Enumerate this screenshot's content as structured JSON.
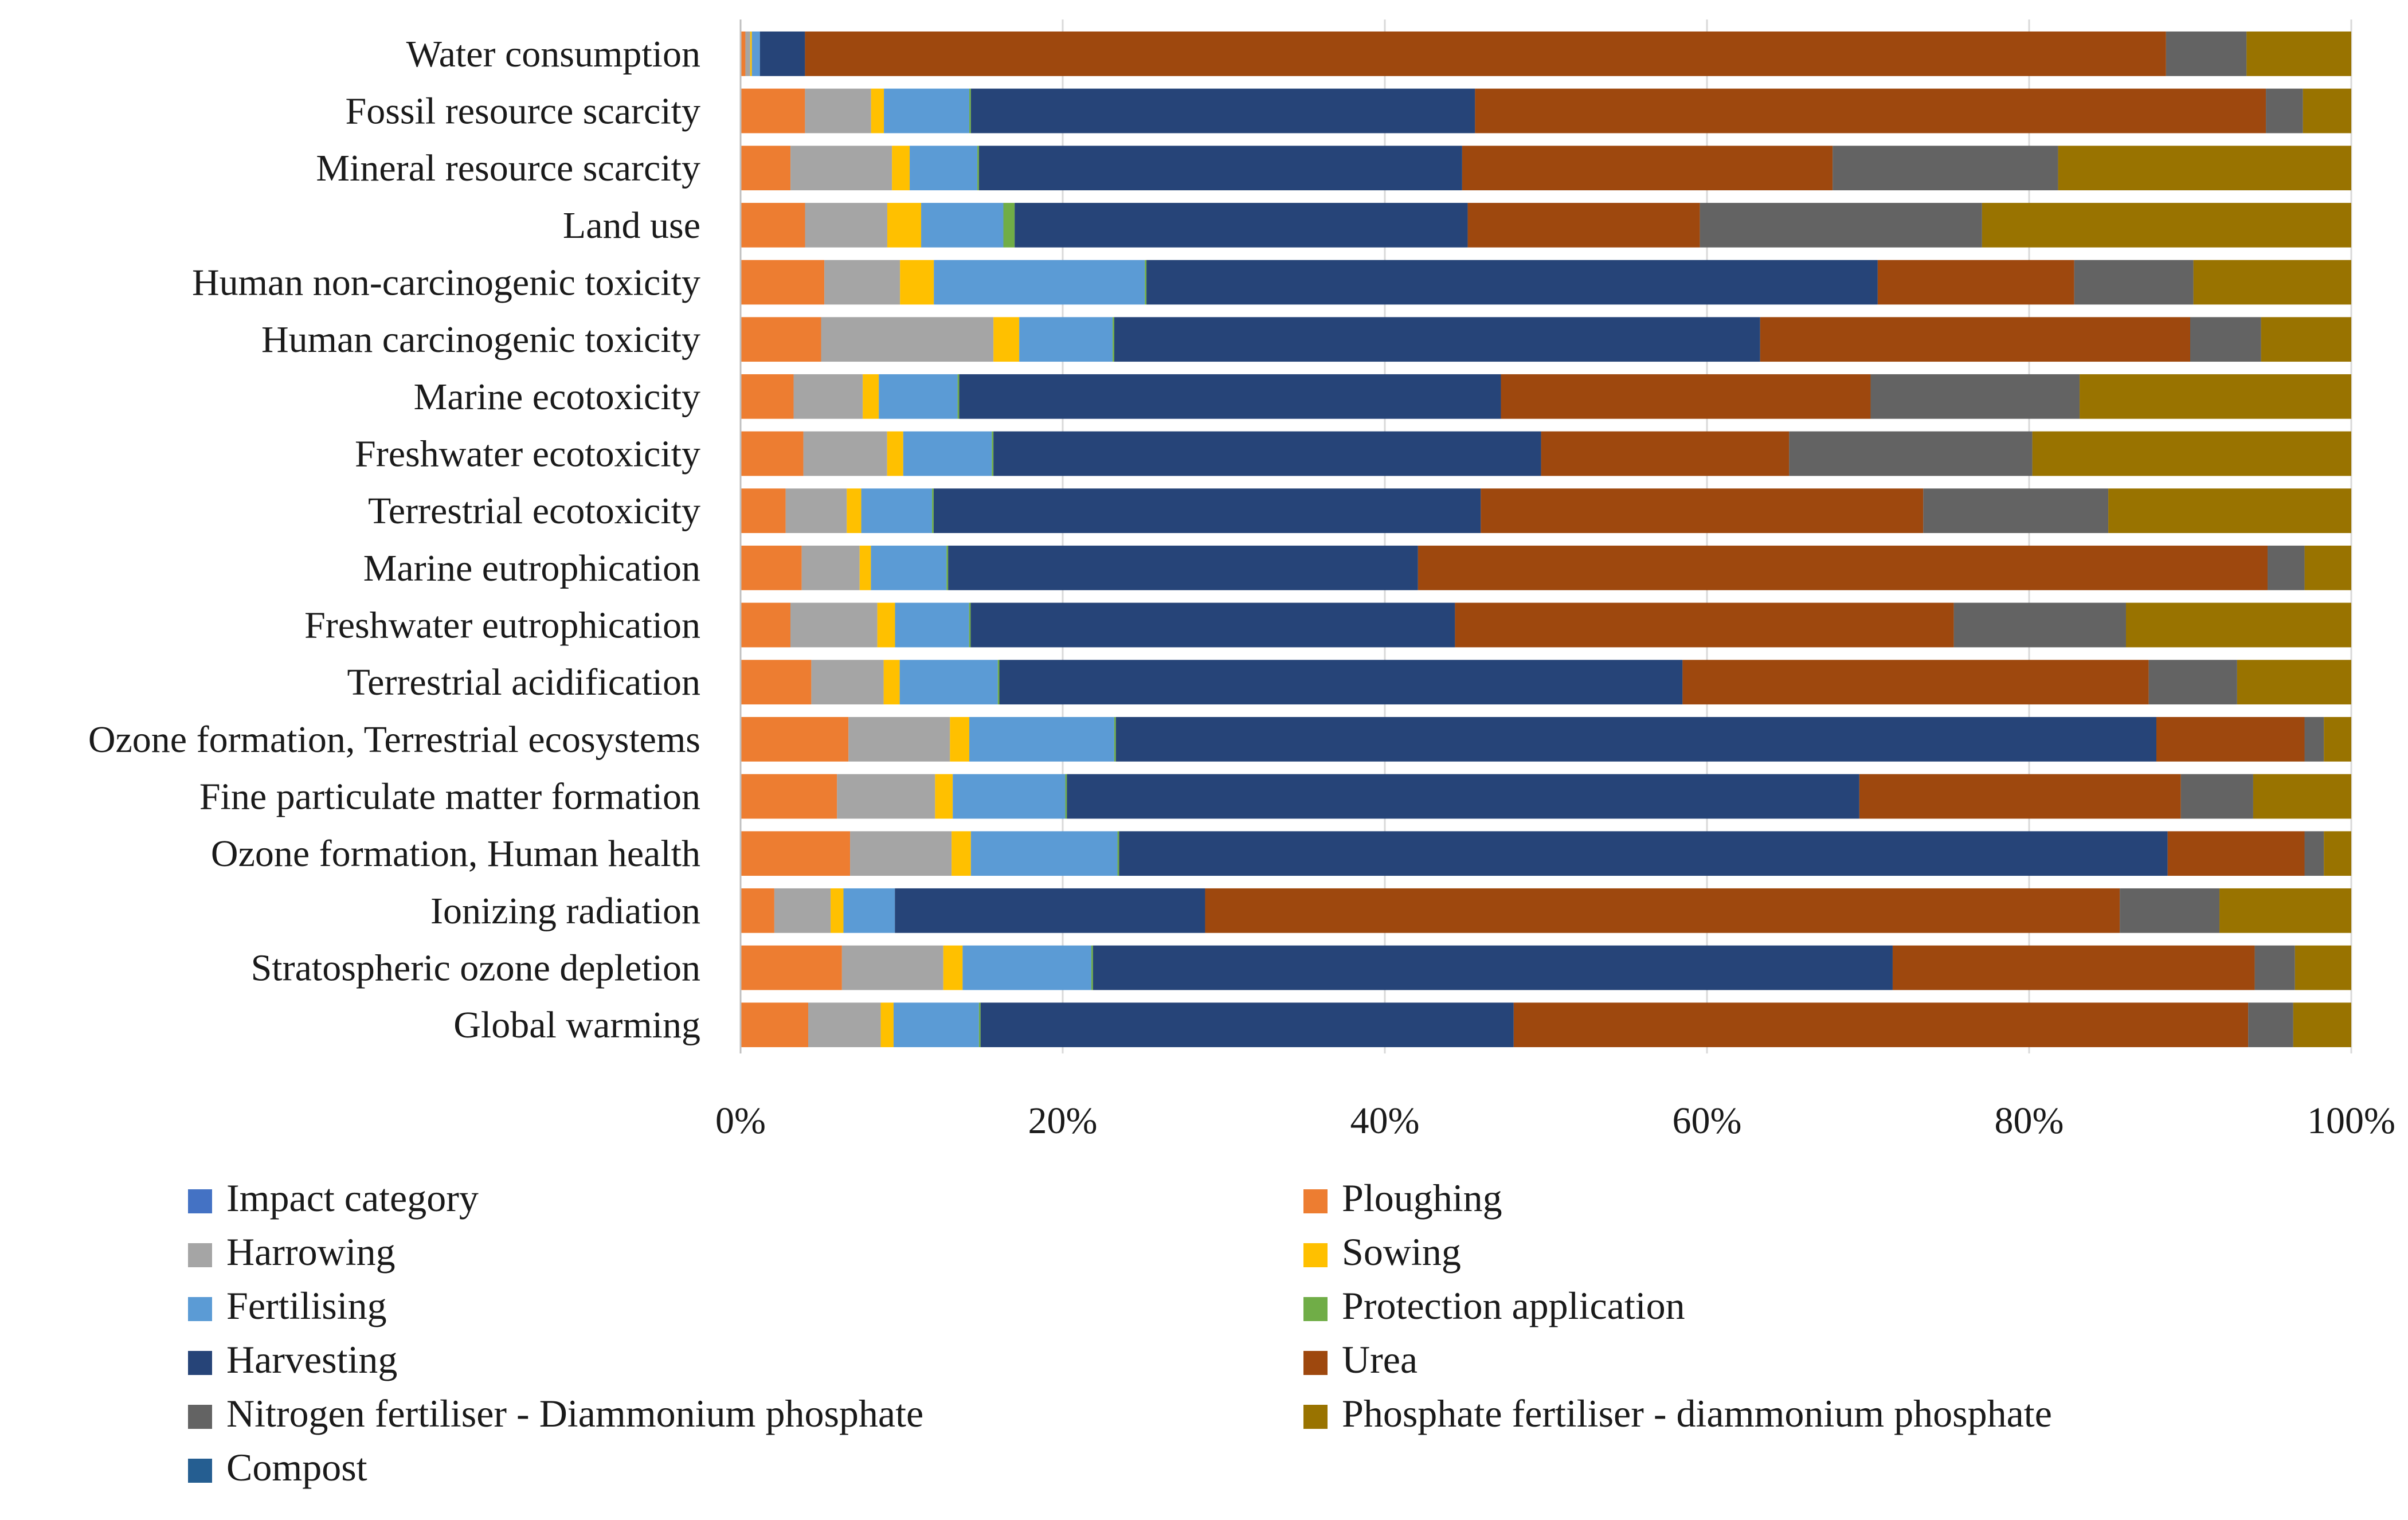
{
  "chart_data": {
    "type": "bar",
    "orientation": "horizontal",
    "stacked": true,
    "normalized": true,
    "title": "",
    "xlabel": "",
    "ylabel": "",
    "xlim": [
      0,
      100
    ],
    "x_ticks": [
      "0%",
      "20%",
      "40%",
      "60%",
      "80%",
      "100%"
    ],
    "grid": true,
    "legend_position": "bottom",
    "categories": [
      "Water consumption",
      "Fossil resource scarcity",
      "Mineral resource scarcity",
      "Land use",
      "Human non-carcinogenic toxicity",
      "Human carcinogenic toxicity",
      "Marine ecotoxicity",
      "Freshwater ecotoxicity",
      "Terrestrial ecotoxicity",
      "Marine eutrophication",
      "Freshwater eutrophication",
      "Terrestrial acidification",
      "Ozone formation, Terrestrial ecosystems",
      "Fine particulate matter formation",
      "Ozone formation, Human health",
      "Ionizing radiation",
      "Stratospheric ozone depletion",
      "Global warming"
    ],
    "legend": [
      {
        "name": "Impact category",
        "color": "#4472C4"
      },
      {
        "name": "Ploughing",
        "color": "#ED7D31"
      },
      {
        "name": "Harrowing",
        "color": "#A5A5A5"
      },
      {
        "name": "Sowing",
        "color": "#FFC000"
      },
      {
        "name": "Fertilising",
        "color": "#5B9BD5"
      },
      {
        "name": "Protection application",
        "color": "#70AD47"
      },
      {
        "name": "Harvesting",
        "color": "#264478"
      },
      {
        "name": "Urea",
        "color": "#9E480E"
      },
      {
        "name": "Nitrogen fertiliser - Diammonium phosphate",
        "color": "#636363"
      },
      {
        "name": "Phosphate fertiliser - diammonium phosphate",
        "color": "#997300"
      },
      {
        "name": "Compost",
        "color": "#255E91"
      }
    ],
    "series": [
      {
        "name": "Ploughing",
        "color": "#ED7D31",
        "values": [
          0.3,
          4.0,
          3.1,
          4.0,
          5.2,
          5.0,
          3.3,
          3.9,
          2.8,
          3.8,
          3.1,
          4.4,
          6.7,
          6.0,
          6.8,
          2.1,
          6.3,
          4.2
        ]
      },
      {
        "name": "Harrowing",
        "color": "#A5A5A5",
        "values": [
          0.3,
          4.1,
          6.3,
          5.1,
          4.7,
          10.7,
          4.3,
          5.2,
          3.8,
          3.6,
          5.4,
          4.5,
          6.3,
          6.1,
          6.3,
          3.5,
          6.3,
          4.5
        ]
      },
      {
        "name": "Sowing",
        "color": "#FFC000",
        "values": [
          0.1,
          0.8,
          1.1,
          2.1,
          2.1,
          1.6,
          1.0,
          1.0,
          0.9,
          0.7,
          1.1,
          1.0,
          1.2,
          1.1,
          1.2,
          0.8,
          1.2,
          0.8
        ]
      },
      {
        "name": "Fertilising",
        "color": "#5B9BD5",
        "values": [
          0.5,
          5.3,
          4.2,
          5.1,
          13.1,
          5.8,
          4.9,
          5.5,
          4.4,
          4.7,
          4.6,
          6.1,
          9.0,
          7.0,
          9.1,
          3.2,
          8.0,
          5.3
        ]
      },
      {
        "name": "Protection application",
        "color": "#70AD47",
        "values": [
          0.0,
          0.1,
          0.1,
          0.7,
          0.1,
          0.1,
          0.1,
          0.1,
          0.1,
          0.1,
          0.1,
          0.1,
          0.1,
          0.1,
          0.1,
          0.0,
          0.1,
          0.1
        ]
      },
      {
        "name": "Harvesting",
        "color": "#264478",
        "values": [
          2.8,
          31.3,
          30.0,
          28.1,
          45.4,
          40.1,
          33.7,
          34.0,
          34.0,
          29.2,
          30.1,
          42.5,
          64.6,
          49.3,
          65.1,
          19.3,
          49.7,
          33.1
        ]
      },
      {
        "name": "Urea",
        "color": "#9E480E",
        "values": [
          84.5,
          49.1,
          23.0,
          14.4,
          12.2,
          26.7,
          23.0,
          15.4,
          27.5,
          52.8,
          31.0,
          29.0,
          9.2,
          20.0,
          8.5,
          56.9,
          22.5,
          45.6
        ]
      },
      {
        "name": "Nitrogen fertiliser - Diammonium phosphate",
        "color": "#636363",
        "values": [
          5.0,
          2.3,
          14.0,
          17.5,
          7.4,
          4.4,
          13.0,
          15.1,
          11.5,
          2.3,
          10.7,
          5.5,
          1.2,
          4.5,
          1.2,
          6.2,
          2.5,
          2.8
        ]
      },
      {
        "name": "Phosphate fertiliser - diammonium phosphate",
        "color": "#997300",
        "values": [
          6.5,
          3.0,
          18.2,
          22.9,
          9.8,
          5.6,
          16.9,
          19.8,
          15.1,
          2.9,
          14.0,
          7.1,
          1.7,
          6.1,
          1.7,
          8.2,
          3.5,
          3.6
        ]
      },
      {
        "name": "Compost",
        "color": "#255E91",
        "values": [
          0,
          0,
          0,
          0,
          0,
          0,
          0,
          0,
          0,
          0,
          0,
          0,
          0,
          0,
          0,
          0,
          0,
          0
        ]
      }
    ]
  }
}
